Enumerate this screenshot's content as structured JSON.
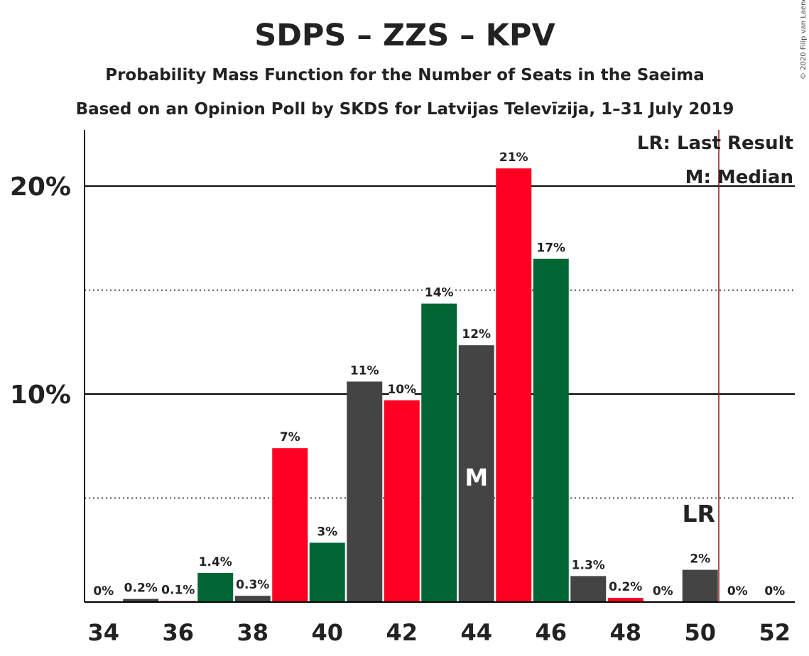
{
  "colors": {
    "red": "#ff0022",
    "green": "#006633",
    "gray": "#444444",
    "last_result_line": "#8b1a1a"
  },
  "copyright": "© 2020 Filip van Laenen",
  "chart_data": {
    "type": "bar",
    "title": "SDPS – ZZS – KPV",
    "subtitle1": "Probability Mass Function for the Number of Seats in the Saeima",
    "subtitle2": "Based on an Opinion Poll by SKDS for Latvijas Televīzija, 1–31 July 2019",
    "ylim": [
      0,
      22.7
    ],
    "y_ticks": [
      {
        "value": 10,
        "label": "10%"
      },
      {
        "value": 20,
        "label": "20%"
      }
    ],
    "y_dotted": [
      5,
      15
    ],
    "x_ticks": [
      "34",
      "36",
      "38",
      "40",
      "42",
      "44",
      "46",
      "48",
      "50",
      "52"
    ],
    "bars": [
      {
        "seats": 34,
        "value": 0,
        "label": "0%",
        "color": "red"
      },
      {
        "seats": 35,
        "value": 0.15,
        "label": "0.2%",
        "color": "gray"
      },
      {
        "seats": 36,
        "value": 0.05,
        "label": "0.1%",
        "color": "red"
      },
      {
        "seats": 37,
        "value": 1.4,
        "label": "1.4%",
        "color": "green"
      },
      {
        "seats": 38,
        "value": 0.3,
        "label": "0.3%",
        "color": "gray"
      },
      {
        "seats": 39,
        "value": 7.4,
        "label": "7%",
        "color": "red"
      },
      {
        "seats": 40,
        "value": 2.85,
        "label": "3%",
        "color": "green"
      },
      {
        "seats": 41,
        "value": 10.6,
        "label": "11%",
        "color": "gray"
      },
      {
        "seats": 42,
        "value": 9.7,
        "label": "10%",
        "color": "red"
      },
      {
        "seats": 43,
        "value": 14.35,
        "label": "14%",
        "color": "green"
      },
      {
        "seats": 44,
        "value": 12.35,
        "label": "12%",
        "color": "gray",
        "marker": "M"
      },
      {
        "seats": 45,
        "value": 20.85,
        "label": "21%",
        "color": "red"
      },
      {
        "seats": 46,
        "value": 16.5,
        "label": "17%",
        "color": "green"
      },
      {
        "seats": 47,
        "value": 1.25,
        "label": "1.3%",
        "color": "gray"
      },
      {
        "seats": 48,
        "value": 0.2,
        "label": "0.2%",
        "color": "red"
      },
      {
        "seats": 49,
        "value": 0,
        "label": "0%",
        "color": "green"
      },
      {
        "seats": 50,
        "value": 1.55,
        "label": "2%",
        "color": "gray"
      },
      {
        "seats": 51,
        "value": 0,
        "label": "0%",
        "color": "red"
      },
      {
        "seats": 52,
        "value": 0,
        "label": "0%",
        "color": "green"
      }
    ],
    "last_result": {
      "seats": 50.5,
      "label": "LR"
    },
    "legend": [
      "LR: Last Result",
      "M: Median"
    ],
    "legend_position": "top-right",
    "grid": true
  }
}
